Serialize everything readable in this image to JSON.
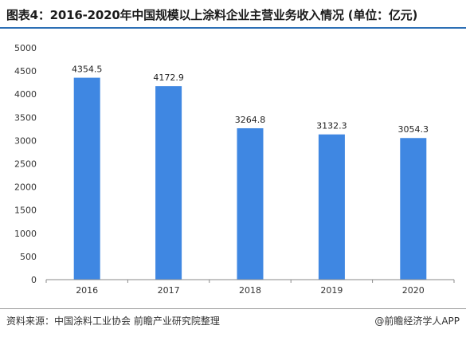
{
  "title": "图表4：2016-2020年中国规模以上涂料企业主营业务收入情况 (单位：亿元)",
  "source": "资料来源：中国涂料工业协会 前瞻产业研究院整理",
  "brand": "@前瞻经济学人APP",
  "colors": {
    "bar": "#3f87e2",
    "rule": "#2c6fb5"
  },
  "chart_data": {
    "type": "bar",
    "title": "图表4：2016-2020年中国规模以上涂料企业主营业务收入情况 (单位：亿元)",
    "categories": [
      "2016",
      "2017",
      "2018",
      "2019",
      "2020"
    ],
    "values": [
      4354.5,
      4172.9,
      3264.8,
      3132.3,
      3054.3
    ],
    "data_labels": [
      "4354.5",
      "4172.9",
      "3264.8",
      "3132.3",
      "3054.3"
    ],
    "xlabel": "",
    "ylabel": "",
    "ylim": [
      0,
      5000
    ],
    "yticks": [
      0,
      500,
      1000,
      1500,
      2000,
      2500,
      3000,
      3500,
      4000,
      4500,
      5000
    ],
    "grid": false,
    "legend": "none"
  }
}
